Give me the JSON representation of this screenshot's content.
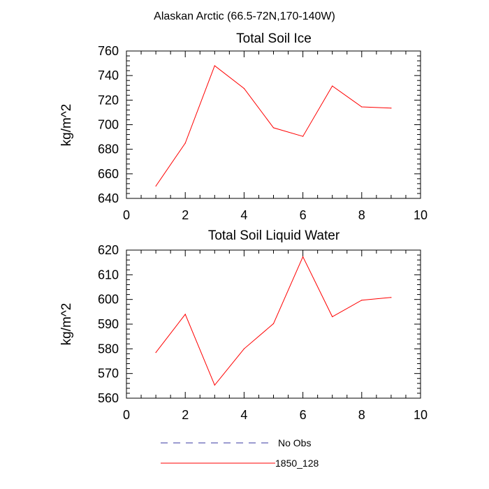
{
  "figure_title": "Alaskan Arctic (66.5-72N,170-140W)",
  "colors": {
    "series": "#ff0000",
    "obs": "#3a3aa0",
    "axis": "#000000"
  },
  "legend": [
    {
      "label": "No Obs",
      "style": "dashed",
      "color": "#3a3aa0"
    },
    {
      "label": "1850_128",
      "style": "solid",
      "color": "#ff0000"
    }
  ],
  "chart_data": [
    {
      "type": "line",
      "title": "Total Soil Ice",
      "xlabel": "",
      "ylabel": "kg/m^2",
      "xlim": [
        0,
        10
      ],
      "ylim": [
        640,
        760
      ],
      "xticks": [
        0,
        2,
        4,
        6,
        8,
        10
      ],
      "yticks": [
        640,
        660,
        680,
        700,
        720,
        740,
        760
      ],
      "series": [
        {
          "name": "1850_128",
          "x": [
            1,
            2,
            3,
            4,
            5,
            6,
            7,
            8,
            9
          ],
          "y": [
            650,
            685,
            748,
            729.5,
            697.5,
            690.5,
            731.5,
            714.5,
            713.5
          ]
        }
      ]
    },
    {
      "type": "line",
      "title": "Total Soil Liquid Water",
      "xlabel": "",
      "ylabel": "kg/m^2",
      "xlim": [
        0,
        10
      ],
      "ylim": [
        560,
        620
      ],
      "xticks": [
        0,
        2,
        4,
        6,
        8,
        10
      ],
      "yticks": [
        560,
        570,
        580,
        590,
        600,
        610,
        620
      ],
      "series": [
        {
          "name": "1850_128",
          "x": [
            1,
            2,
            3,
            4,
            5,
            6,
            7,
            8,
            9
          ],
          "y": [
            578.5,
            594,
            565.3,
            580,
            590.2,
            617.3,
            593,
            599.7,
            600.8
          ]
        }
      ]
    }
  ]
}
